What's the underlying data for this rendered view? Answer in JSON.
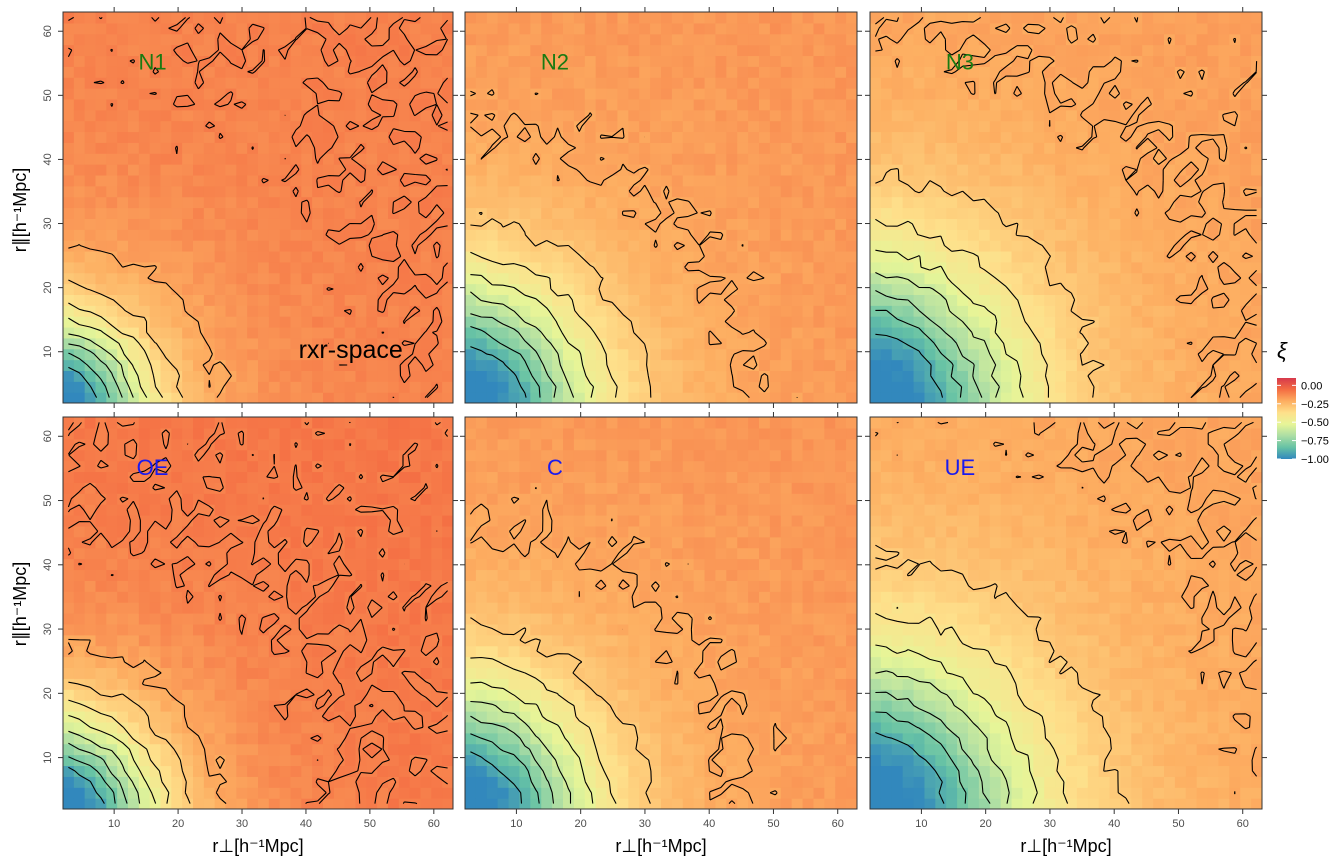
{
  "chart_data": {
    "type": "heatmap",
    "xlabel": "r⊥[h⁻¹Mpc]",
    "ylabel": "r∥[h⁻¹Mpc]",
    "xlim": [
      2,
      63
    ],
    "ylim": [
      2,
      63
    ],
    "x_ticks": [
      10,
      20,
      30,
      40,
      50,
      60
    ],
    "y_ticks": [
      10,
      20,
      30,
      40,
      50,
      60
    ],
    "legend": {
      "title": "ξ",
      "placement": "right",
      "range": [
        -1.0,
        0.1
      ],
      "ticks": [
        0.0,
        -0.25,
        -0.5,
        -0.75,
        -1.0
      ],
      "tick_labels": [
        "0.00",
        "−0.25",
        "−0.50",
        "−0.75",
        "−1.00"
      ],
      "colors": [
        "#d7394c",
        "#f46d43",
        "#fdae61",
        "#fee08b",
        "#e6f598",
        "#abdda4",
        "#66c2a5",
        "#3288bd"
      ]
    },
    "contour_levels": [
      -0.9,
      -0.8,
      -0.7,
      -0.6,
      -0.5,
      -0.4,
      -0.3,
      -0.2,
      -0.1
    ],
    "annotation": "rxr-space",
    "panels": [
      {
        "label": "N1",
        "label_color": "#1a7a12",
        "background_xi": -0.1,
        "inner_radius": 7,
        "half_radius": 14,
        "plateau_radius": 18,
        "y_stretch": 1.0
      },
      {
        "label": "N2",
        "label_color": "#1a7a12",
        "background_xi": -0.15,
        "inner_radius": 8,
        "half_radius": 19,
        "plateau_radius": 31,
        "y_stretch": 1.0
      },
      {
        "label": "N3",
        "label_color": "#1a7a12",
        "background_xi": -0.17,
        "inner_radius": 10,
        "half_radius": 22,
        "plateau_radius": 40,
        "y_stretch": 1.0
      },
      {
        "label": "OE",
        "label_color": "#1a1aee",
        "background_xi": -0.08,
        "inner_radius": 7,
        "half_radius": 15,
        "plateau_radius": 27,
        "y_stretch": 1.0
      },
      {
        "label": "C",
        "label_color": "#1a1aee",
        "background_xi": -0.15,
        "inner_radius": 8,
        "half_radius": 19,
        "plateau_radius": 31,
        "y_stretch": 1.0
      },
      {
        "label": "UE",
        "label_color": "#1a1aee",
        "background_xi": -0.18,
        "inner_radius": 10,
        "half_radius": 23,
        "plateau_radius": 47,
        "y_stretch": 1.0
      }
    ]
  }
}
